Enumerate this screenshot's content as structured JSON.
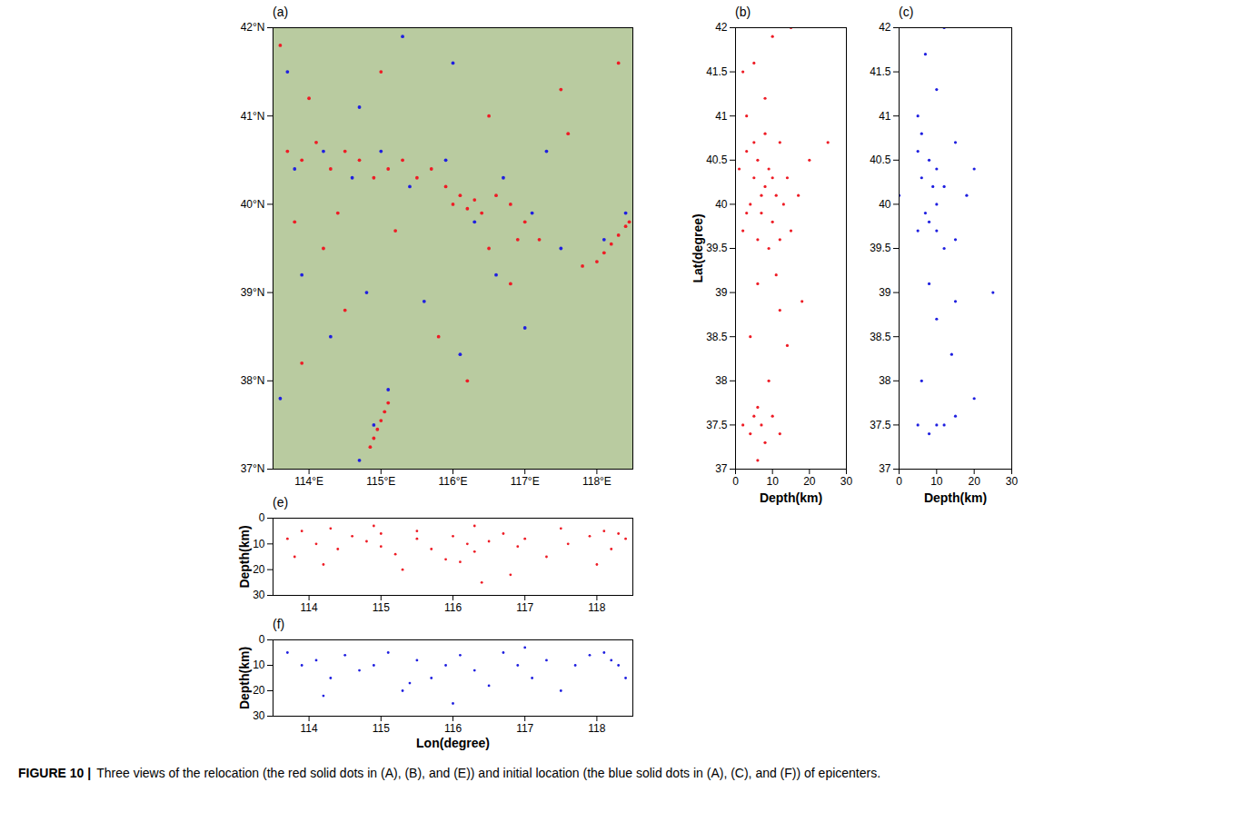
{
  "chart_data": [
    {
      "type": "scatter",
      "panel": "(a)",
      "grid": false,
      "xlim": [
        113.5,
        118.5
      ],
      "xticks": [
        {
          "value": 114,
          "label": "114°E"
        },
        {
          "value": 115,
          "label": "115°E"
        },
        {
          "value": 116,
          "label": "116°E"
        },
        {
          "value": 117,
          "label": "117°E"
        },
        {
          "value": 118,
          "label": "118°E"
        }
      ],
      "ylim": [
        37,
        42
      ],
      "yticks": [
        {
          "value": 37,
          "label": "37°N"
        },
        {
          "value": 38,
          "label": "38°N"
        },
        {
          "value": 39,
          "label": "39°N"
        },
        {
          "value": 40,
          "label": "40°N"
        },
        {
          "value": 41,
          "label": "41°N"
        },
        {
          "value": 42,
          "label": "42°N"
        }
      ],
      "series": [
        {
          "color": "#ee1c25",
          "marker": "circle",
          "x": [
            113.7,
            113.9,
            114.1,
            114.3,
            114.5,
            114.7,
            114.9,
            115.1,
            115.3,
            115.5,
            115.7,
            115.9,
            116.0,
            116.1,
            116.2,
            116.3,
            116.4,
            116.6,
            116.8,
            117.0,
            117.2,
            116.5,
            116.9,
            118.0,
            118.1,
            118.2,
            118.3,
            118.4,
            118.45,
            117.8,
            114.85,
            114.9,
            114.95,
            115.0,
            115.05,
            115.1,
            114.5,
            114.2,
            113.8,
            114.0,
            115.0,
            116.5,
            117.5,
            115.8,
            116.2,
            113.9,
            114.4,
            115.2,
            113.6,
            117.6,
            118.3,
            116.8
          ],
          "y": [
            40.6,
            40.5,
            40.7,
            40.4,
            40.6,
            40.5,
            40.3,
            40.4,
            40.5,
            40.3,
            40.4,
            40.2,
            40.0,
            40.1,
            39.95,
            40.05,
            39.9,
            40.1,
            40.0,
            39.8,
            39.6,
            39.5,
            39.6,
            39.35,
            39.45,
            39.55,
            39.65,
            39.75,
            39.8,
            39.3,
            37.25,
            37.35,
            37.45,
            37.55,
            37.65,
            37.75,
            38.8,
            39.5,
            39.8,
            41.2,
            41.5,
            41.0,
            41.3,
            38.5,
            38.0,
            38.2,
            39.9,
            39.7,
            41.8,
            40.8,
            41.6,
            39.1
          ]
        },
        {
          "color": "#1f1fe0",
          "marker": "circle",
          "x": [
            113.8,
            114.2,
            114.6,
            115.0,
            115.4,
            115.9,
            116.3,
            116.7,
            117.1,
            117.5,
            118.1,
            118.4,
            114.9,
            115.1,
            114.7,
            114.3,
            113.9,
            114.8,
            115.6,
            116.1,
            117.0,
            113.7,
            114.7,
            116.0,
            117.3,
            115.3,
            116.6,
            113.6
          ],
          "y": [
            40.4,
            40.6,
            40.3,
            40.6,
            40.2,
            40.5,
            39.8,
            40.3,
            39.9,
            39.5,
            39.6,
            39.9,
            37.5,
            37.9,
            37.1,
            38.5,
            39.2,
            39.0,
            38.9,
            38.3,
            38.6,
            41.5,
            41.1,
            41.6,
            40.6,
            41.9,
            39.2,
            37.8
          ]
        }
      ]
    },
    {
      "type": "scatter",
      "panel": "(b)",
      "grid": false,
      "xlabel": "Depth(km)",
      "ylabel": "Lat(degree)",
      "xlim": [
        0,
        30
      ],
      "xticks": [
        0,
        10,
        20,
        30
      ],
      "ylim": [
        37,
        42
      ],
      "yticks": [
        37,
        37.5,
        38,
        38.5,
        39,
        39.5,
        40,
        40.5,
        41,
        41.5,
        42
      ],
      "series": [
        {
          "color": "#ee1c25",
          "marker": "circle",
          "x": [
            3,
            6,
            9,
            12,
            5,
            8,
            11,
            14,
            4,
            7,
            10,
            13,
            2,
            6,
            9,
            15,
            17,
            1,
            8,
            5,
            20,
            12,
            3,
            7,
            10,
            4,
            7,
            10,
            2,
            5,
            12,
            8,
            6,
            9,
            4,
            12,
            6,
            14,
            3,
            8,
            5,
            10,
            2,
            15,
            6,
            18,
            25,
            11
          ],
          "y": [
            40.6,
            40.5,
            40.4,
            40.7,
            40.3,
            40.2,
            40.1,
            40.3,
            40.0,
            39.9,
            39.8,
            40.0,
            39.7,
            39.6,
            39.5,
            39.7,
            40.1,
            40.4,
            40.8,
            40.7,
            40.5,
            39.6,
            39.9,
            40.1,
            40.3,
            37.4,
            37.5,
            37.6,
            37.5,
            37.6,
            37.4,
            37.3,
            37.7,
            38.0,
            38.5,
            38.8,
            39.1,
            38.4,
            41.0,
            41.2,
            41.6,
            41.9,
            41.5,
            42.0,
            37.1,
            38.9,
            40.7,
            39.2
          ]
        }
      ]
    },
    {
      "type": "scatter",
      "panel": "(c)",
      "grid": false,
      "xlabel": "Depth(km)",
      "xlim": [
        0,
        30
      ],
      "xticks": [
        0,
        10,
        20,
        30
      ],
      "ylim": [
        37,
        42
      ],
      "yticks": [
        37,
        37.5,
        38,
        38.5,
        39,
        39.5,
        40,
        40.5,
        41,
        41.5,
        42
      ],
      "series": [
        {
          "color": "#1f1fe0",
          "marker": "circle",
          "x": [
            5,
            8,
            10,
            15,
            6,
            12,
            10,
            8,
            5,
            15,
            10,
            18,
            20,
            7,
            12,
            9,
            6,
            5,
            8,
            10,
            15,
            12,
            6,
            10,
            8,
            15,
            5,
            10,
            7,
            12,
            20,
            0,
            25,
            14
          ],
          "y": [
            40.6,
            40.5,
            40.4,
            40.7,
            40.3,
            40.2,
            40.0,
            39.8,
            39.7,
            39.6,
            39.7,
            40.1,
            40.4,
            39.9,
            39.5,
            40.2,
            40.8,
            37.5,
            37.4,
            37.5,
            37.6,
            37.5,
            38.0,
            38.7,
            39.1,
            38.9,
            41.0,
            41.3,
            41.7,
            42.0,
            37.8,
            40.1,
            39.0,
            38.3
          ]
        }
      ]
    },
    {
      "type": "scatter",
      "panel": "(e)",
      "grid": false,
      "ylabel": "Depth(km)",
      "xlim": [
        113.5,
        118.5
      ],
      "xticks": [
        114,
        115,
        116,
        117,
        118
      ],
      "ylim": [
        0,
        30
      ],
      "yticks": [
        0,
        10,
        20,
        30
      ],
      "series": [
        {
          "color": "#ee1c25",
          "marker": "circle",
          "x": [
            113.7,
            113.9,
            114.1,
            114.3,
            114.4,
            114.6,
            114.8,
            115.0,
            115.0,
            115.2,
            115.5,
            115.5,
            115.7,
            115.9,
            116.0,
            116.2,
            116.3,
            116.3,
            116.5,
            116.7,
            116.9,
            117.0,
            117.3,
            117.6,
            117.9,
            118.1,
            118.3,
            118.4,
            118.2,
            114.2,
            115.3,
            116.1,
            116.8,
            113.8,
            117.5,
            118.0,
            114.9,
            116.4
          ],
          "y": [
            8,
            5,
            10,
            4,
            12,
            7,
            9,
            11,
            6,
            14,
            5,
            8,
            12,
            16,
            7,
            10,
            3,
            13,
            9,
            6,
            11,
            8,
            15,
            10,
            7,
            5,
            6,
            8,
            12,
            18,
            20,
            17,
            22,
            15,
            4,
            18,
            3,
            25
          ]
        }
      ]
    },
    {
      "type": "scatter",
      "panel": "(f)",
      "grid": false,
      "xlabel": "Lon(degree)",
      "ylabel": "Depth(km)",
      "xlim": [
        113.5,
        118.5
      ],
      "xticks": [
        114,
        115,
        116,
        117,
        118
      ],
      "ylim": [
        0,
        30
      ],
      "yticks": [
        0,
        10,
        20,
        30
      ],
      "series": [
        {
          "color": "#1f1fe0",
          "marker": "circle",
          "x": [
            113.7,
            113.9,
            114.1,
            114.3,
            114.5,
            114.7,
            114.9,
            115.1,
            115.3,
            115.5,
            115.7,
            115.9,
            116.1,
            116.3,
            116.5,
            116.7,
            116.9,
            117.1,
            117.3,
            117.5,
            117.7,
            117.9,
            118.1,
            118.3,
            118.4,
            118.2,
            114.2,
            116.0,
            117.0,
            115.4
          ],
          "y": [
            5,
            10,
            8,
            15,
            6,
            12,
            10,
            5,
            20,
            8,
            15,
            10,
            6,
            12,
            18,
            5,
            10,
            15,
            8,
            20,
            10,
            6,
            5,
            10,
            15,
            8,
            22,
            25,
            3,
            17
          ]
        }
      ]
    }
  ],
  "caption": {
    "label": "FIGURE 10 |",
    "text": "Three views of the relocation (the red solid dots in (A), (B), and (E)) and initial location (the blue solid dots in (A), (C), and (F)) of epicenters."
  }
}
